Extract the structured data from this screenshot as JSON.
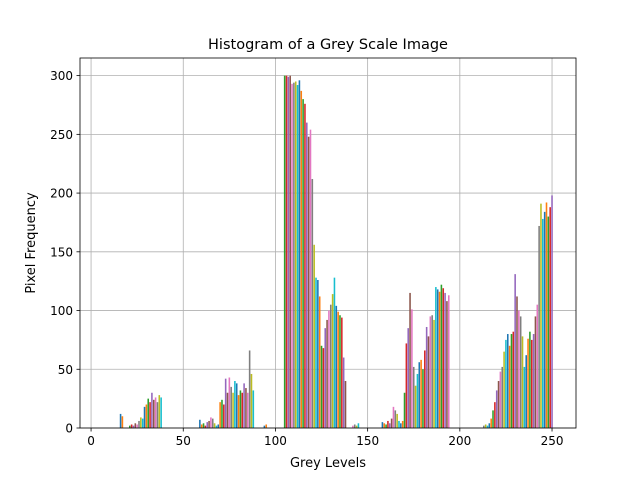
{
  "chart_data": {
    "type": "bar",
    "title": "Histogram of a Grey Scale Image",
    "xlabel": "Grey Levels",
    "ylabel": "Pixel Frequency",
    "xlim": [
      -6,
      263
    ],
    "ylim": [
      0,
      315
    ],
    "xticks": [
      0,
      50,
      100,
      150,
      200,
      250
    ],
    "yticks": [
      0,
      50,
      100,
      150,
      200,
      250,
      300
    ],
    "grid": true,
    "legend": "none",
    "bar_colors": [
      "#1f77b4",
      "#ff7f0e",
      "#2ca02c",
      "#d62728",
      "#9467bd",
      "#8c564b",
      "#e377c2",
      "#7f7f7f",
      "#bcbd22",
      "#17becf"
    ],
    "x": [
      16,
      17,
      21,
      22,
      23,
      24,
      25,
      26,
      27,
      28,
      29,
      30,
      31,
      32,
      33,
      34,
      35,
      36,
      37,
      38,
      59,
      60,
      61,
      62,
      63,
      64,
      65,
      66,
      67,
      68,
      69,
      70,
      71,
      72,
      73,
      74,
      75,
      76,
      77,
      78,
      79,
      80,
      81,
      82,
      83,
      84,
      85,
      86,
      87,
      88,
      94,
      95,
      105,
      106,
      107,
      108,
      109,
      110,
      111,
      112,
      113,
      114,
      115,
      116,
      117,
      118,
      119,
      120,
      121,
      122,
      123,
      124,
      125,
      126,
      127,
      128,
      129,
      130,
      131,
      132,
      133,
      134,
      135,
      136,
      137,
      138,
      142,
      143,
      144,
      145,
      158,
      159,
      160,
      161,
      162,
      163,
      164,
      165,
      166,
      167,
      168,
      169,
      170,
      171,
      172,
      173,
      174,
      175,
      176,
      177,
      178,
      179,
      180,
      181,
      182,
      183,
      184,
      185,
      186,
      187,
      188,
      189,
      190,
      191,
      192,
      193,
      194,
      213,
      214,
      215,
      216,
      217,
      218,
      219,
      220,
      221,
      222,
      223,
      224,
      225,
      226,
      227,
      228,
      229,
      230,
      231,
      232,
      233,
      234,
      235,
      236,
      237,
      238,
      239,
      240,
      241,
      242,
      243,
      244,
      245,
      246,
      247,
      248,
      249,
      250
    ],
    "values": [
      12,
      10,
      2,
      3,
      2,
      4,
      3,
      6,
      9,
      8,
      18,
      20,
      25,
      22,
      30,
      24,
      26,
      22,
      28,
      26,
      7,
      3,
      4,
      2,
      5,
      6,
      9,
      8,
      4,
      2,
      3,
      22,
      24,
      20,
      42,
      30,
      43,
      35,
      30,
      40,
      38,
      28,
      32,
      30,
      38,
      34,
      30,
      66,
      46,
      32,
      2,
      3,
      300,
      300,
      299,
      300,
      293,
      294,
      295,
      292,
      296,
      287,
      280,
      276,
      260,
      248,
      254,
      212,
      156,
      128,
      126,
      112,
      70,
      68,
      85,
      92,
      100,
      105,
      114,
      128,
      104,
      99,
      96,
      94,
      60,
      40,
      2,
      3,
      2,
      4,
      5,
      4,
      3,
      6,
      4,
      8,
      18,
      15,
      12,
      6,
      4,
      6,
      30,
      72,
      85,
      115,
      101,
      52,
      36,
      46,
      56,
      58,
      50,
      66,
      86,
      78,
      95,
      96,
      92,
      120,
      118,
      116,
      122,
      119,
      115,
      108,
      113,
      2,
      3,
      2,
      4,
      8,
      15,
      22,
      32,
      40,
      48,
      52,
      65,
      75,
      80,
      70,
      80,
      82,
      131,
      112,
      100,
      95,
      78,
      52,
      62,
      76,
      82,
      75,
      80,
      95,
      105,
      172,
      191,
      178,
      184,
      192,
      180,
      188,
      198
    ]
  }
}
